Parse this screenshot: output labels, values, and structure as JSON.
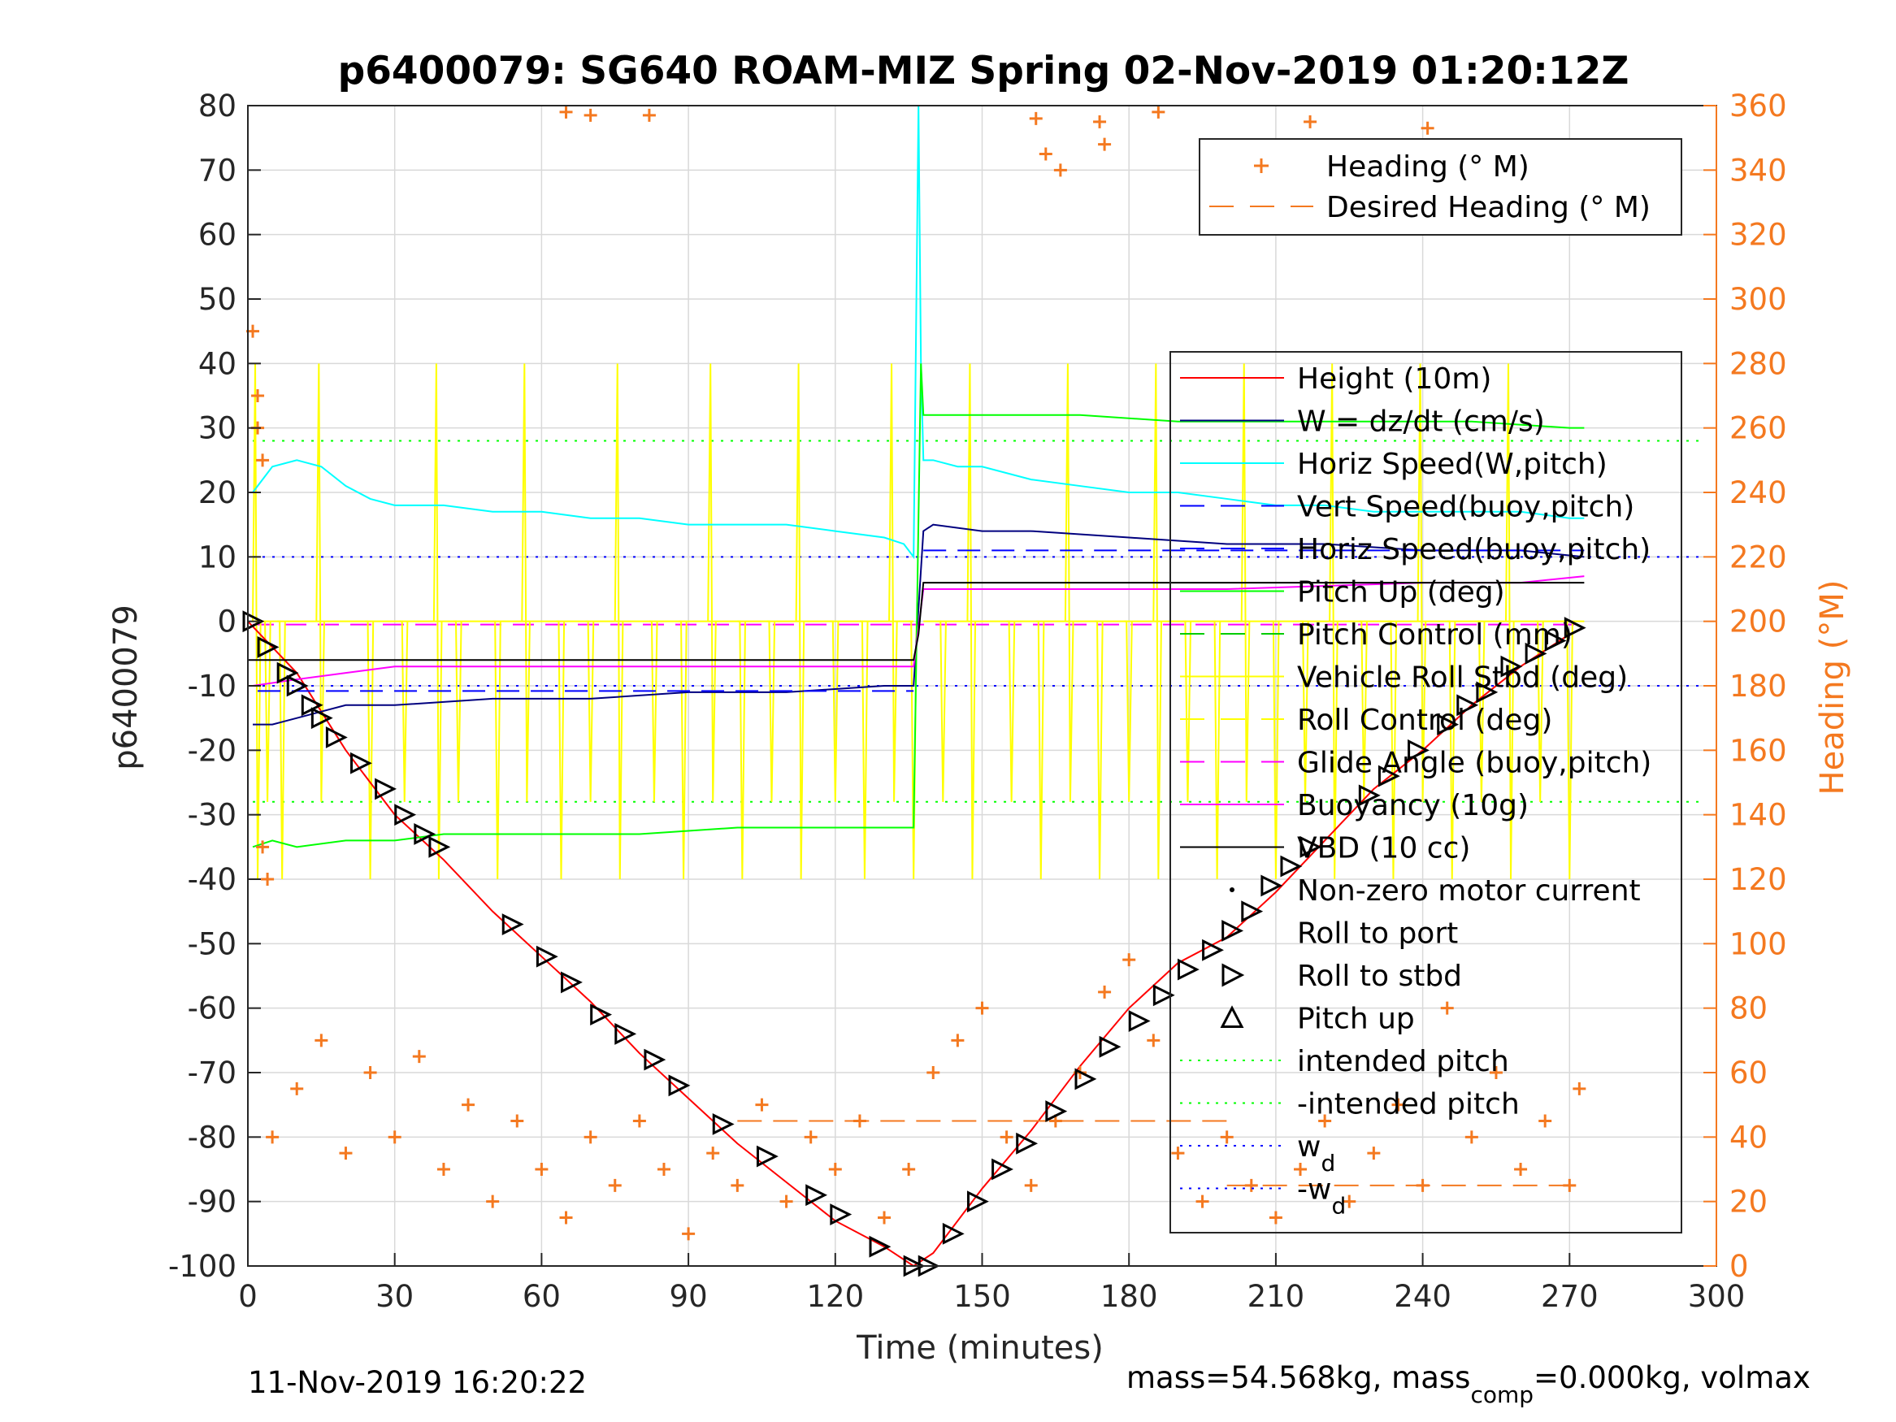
{
  "chart_data": {
    "type": "line",
    "title": "p6400079: SG640 ROAM-MIZ Spring 02-Nov-2019 01:20:12Z",
    "xlabel": "Time (minutes)",
    "ylabel": "p6400079",
    "y2label": "Heading (°M)",
    "xlim": [
      0,
      300
    ],
    "ylim": [
      -100,
      80
    ],
    "y2lim": [
      0,
      360
    ],
    "xticks": [
      "0",
      "30",
      "60",
      "90",
      "120",
      "150",
      "180",
      "210",
      "240",
      "270",
      "300"
    ],
    "yticks": [
      "80",
      "70",
      "60",
      "50",
      "40",
      "30",
      "20",
      "10",
      "0",
      "-10",
      "-20",
      "-30",
      "-40",
      "-50",
      "-60",
      "-70",
      "-80",
      "-90",
      "-100"
    ],
    "y2ticks": [
      "360",
      "340",
      "320",
      "300",
      "280",
      "260",
      "240",
      "220",
      "200",
      "180",
      "160",
      "140",
      "120",
      "100",
      "80",
      "60",
      "40",
      "20",
      "0"
    ],
    "grid": true,
    "legend_heading": {
      "placement": "top-right",
      "entries": [
        {
          "label": "Heading (° M)",
          "color": "#f47920",
          "style": "plus"
        },
        {
          "label": "Desired Heading (° M)",
          "color": "#f47920",
          "style": "dash"
        }
      ]
    },
    "legend_main": {
      "placement": "right",
      "entries": [
        {
          "label": "Height (10m)",
          "color": "#ff0000",
          "style": "line"
        },
        {
          "label": "W = dz/dt (cm/s)",
          "color": "#00007f",
          "style": "line"
        },
        {
          "label": "Horiz Speed(W,pitch)",
          "color": "#00ffff",
          "style": "line"
        },
        {
          "label": "Vert Speed(buoy,pitch)",
          "color": "#0000ff",
          "style": "dash"
        },
        {
          "label": "Horiz Speed(buoy,pitch)",
          "color": "#0000ff",
          "style": "dash"
        },
        {
          "label": "Pitch Up (deg)",
          "color": "#00ff00",
          "style": "line"
        },
        {
          "label": "Pitch Control (mm)",
          "color": "#00cc00",
          "style": "dash"
        },
        {
          "label": "Vehicle Roll Stbd (deg)",
          "color": "#ffff00",
          "style": "line"
        },
        {
          "label": "Roll Control (deg)",
          "color": "#ffff00",
          "style": "dash"
        },
        {
          "label": "Glide Angle (buoy,pitch)",
          "color": "#ff00ff",
          "style": "dash"
        },
        {
          "label": "Buoyancy (10g)",
          "color": "#ff00ff",
          "style": "line"
        },
        {
          "label": "VBD (10 cc)",
          "color": "#000000",
          "style": "line"
        },
        {
          "label": "Non-zero motor current",
          "color": "#000000",
          "style": "dot"
        },
        {
          "label": "Roll to port",
          "color": "#000000",
          "style": "tri-left"
        },
        {
          "label": "Roll to stbd",
          "color": "#000000",
          "style": "tri-right"
        },
        {
          "label": "Pitch up",
          "color": "#000000",
          "style": "tri-up"
        },
        {
          "label": "intended pitch",
          "color": "#00ff00",
          "style": "dotted"
        },
        {
          "label": "-intended pitch",
          "color": "#00ff00",
          "style": "dotted"
        },
        {
          "label": "w",
          "sub": "d",
          "color": "#0000ff",
          "style": "dotted"
        },
        {
          "label": "-w",
          "sub": "d",
          "color": "#0000ff",
          "style": "dotted"
        }
      ]
    },
    "series": [
      {
        "name": "Height (10m)",
        "color": "#ff0000",
        "x": [
          0,
          10,
          20,
          30,
          40,
          50,
          60,
          70,
          80,
          90,
          100,
          110,
          120,
          130,
          136,
          140,
          150,
          160,
          170,
          180,
          190,
          200,
          210,
          220,
          230,
          240,
          250,
          260,
          270,
          273
        ],
        "y": [
          0,
          -8,
          -20,
          -30,
          -37,
          -45,
          -52,
          -59,
          -67,
          -74,
          -81,
          -87,
          -93,
          -97,
          -100,
          -98,
          -88,
          -79,
          -69,
          -60,
          -53,
          -49,
          -42,
          -34,
          -26,
          -20,
          -13,
          -7,
          -2,
          -1
        ]
      },
      {
        "name": "Horiz Speed(W,pitch)",
        "color": "#00ffff",
        "x": [
          1,
          5,
          10,
          15,
          20,
          25,
          30,
          40,
          50,
          60,
          70,
          80,
          90,
          100,
          110,
          120,
          130,
          134,
          136,
          137,
          137.5,
          138,
          140,
          145,
          150,
          160,
          170,
          180,
          190,
          200,
          210,
          220,
          230,
          240,
          250,
          260,
          270,
          273
        ],
        "y": [
          20,
          24,
          25,
          24,
          21,
          19,
          18,
          18,
          17,
          17,
          16,
          16,
          15,
          15,
          15,
          14,
          13,
          12,
          10,
          80,
          40,
          25,
          25,
          24,
          24,
          22,
          21,
          20,
          20,
          19,
          18,
          18,
          17,
          17,
          17,
          17,
          16,
          16
        ]
      },
      {
        "name": "W = dz/dt (cm/s)",
        "color": "#00007f",
        "x": [
          1,
          5,
          10,
          20,
          30,
          50,
          70,
          90,
          110,
          130,
          136,
          138,
          140,
          150,
          160,
          180,
          200,
          220,
          240,
          260,
          273
        ],
        "y": [
          -16,
          -16,
          -15,
          -13,
          -13,
          -12,
          -12,
          -11,
          -11,
          -10,
          -10,
          14,
          15,
          14,
          14,
          13,
          12,
          12,
          11,
          11,
          10
        ]
      },
      {
        "name": "Vert Speed(buoy,pitch)",
        "color": "#0000ff",
        "x": [
          2,
          273
        ],
        "y": [
          -10.8,
          -10.8
        ],
        "note_y_end": 11
      },
      {
        "name": "Pitch Up (deg)",
        "color": "#00ff00",
        "x": [
          1,
          5,
          10,
          20,
          30,
          40,
          60,
          80,
          100,
          120,
          136,
          137.5,
          138,
          140,
          150,
          170,
          190,
          210,
          230,
          250,
          270,
          273
        ],
        "y": [
          -35,
          -34,
          -35,
          -34,
          -34,
          -33,
          -33,
          -33,
          -32,
          -32,
          -32,
          40,
          32,
          32,
          32,
          32,
          31,
          31,
          31,
          31,
          30,
          30
        ]
      },
      {
        "name": "Buoyancy (10g)",
        "color": "#ff00ff",
        "x": [
          1,
          10,
          20,
          30,
          40,
          60,
          80,
          100,
          120,
          136,
          138,
          160,
          200,
          240,
          260,
          273
        ],
        "y": [
          -10,
          -9,
          -8,
          -7,
          -7,
          -7,
          -7,
          -7,
          -7,
          -7,
          5,
          5,
          5,
          6,
          6,
          7
        ]
      },
      {
        "name": "VBD (10 cc)",
        "color": "#000000",
        "x": [
          0,
          136,
          137,
          138,
          240,
          250,
          273
        ],
        "y": [
          -6,
          -6,
          -2,
          6,
          6,
          6,
          6
        ]
      }
    ],
    "reference_lines": [
      {
        "name": "intended pitch",
        "y": 28,
        "color": "#00ff00"
      },
      {
        "name": "-intended pitch",
        "y": -28,
        "color": "#00ff00"
      },
      {
        "name": "w_d",
        "y": 10,
        "color": "#0000ff"
      },
      {
        "name": "-w_d",
        "y": -10,
        "color": "#0000ff"
      },
      {
        "name": "Glide Angle (buoy,pitch)",
        "y": -0.5,
        "color": "#ff00ff"
      }
    ],
    "heading_y2": [
      {
        "x": 5,
        "y": 40
      },
      {
        "x": 10,
        "y": 55
      },
      {
        "x": 15,
        "y": 70
      },
      {
        "x": 20,
        "y": 35
      },
      {
        "x": 25,
        "y": 60
      },
      {
        "x": 30,
        "y": 40
      },
      {
        "x": 35,
        "y": 65
      },
      {
        "x": 40,
        "y": 30
      },
      {
        "x": 45,
        "y": 50
      },
      {
        "x": 50,
        "y": 20
      },
      {
        "x": 55,
        "y": 45
      },
      {
        "x": 60,
        "y": 30
      },
      {
        "x": 65,
        "y": 15
      },
      {
        "x": 70,
        "y": 40
      },
      {
        "x": 75,
        "y": 25
      },
      {
        "x": 80,
        "y": 45
      },
      {
        "x": 85,
        "y": 30
      },
      {
        "x": 90,
        "y": 10
      },
      {
        "x": 95,
        "y": 35
      },
      {
        "x": 100,
        "y": 25
      },
      {
        "x": 105,
        "y": 50
      },
      {
        "x": 110,
        "y": 20
      },
      {
        "x": 115,
        "y": 40
      },
      {
        "x": 120,
        "y": 30
      },
      {
        "x": 125,
        "y": 45
      },
      {
        "x": 130,
        "y": 15
      },
      {
        "x": 135,
        "y": 30
      },
      {
        "x": 140,
        "y": 60
      },
      {
        "x": 145,
        "y": 70
      },
      {
        "x": 150,
        "y": 80
      },
      {
        "x": 155,
        "y": 40
      },
      {
        "x": 160,
        "y": 25
      },
      {
        "x": 165,
        "y": 45
      },
      {
        "x": 170,
        "y": 60
      },
      {
        "x": 175,
        "y": 85
      },
      {
        "x": 180,
        "y": 95
      },
      {
        "x": 185,
        "y": 70
      },
      {
        "x": 190,
        "y": 35
      },
      {
        "x": 195,
        "y": 20
      },
      {
        "x": 200,
        "y": 40
      },
      {
        "x": 205,
        "y": 25
      },
      {
        "x": 210,
        "y": 15
      },
      {
        "x": 215,
        "y": 30
      },
      {
        "x": 220,
        "y": 45
      },
      {
        "x": 225,
        "y": 20
      },
      {
        "x": 230,
        "y": 35
      },
      {
        "x": 235,
        "y": 50
      },
      {
        "x": 240,
        "y": 25
      },
      {
        "x": 245,
        "y": 80
      },
      {
        "x": 250,
        "y": 40
      },
      {
        "x": 255,
        "y": 60
      },
      {
        "x": 260,
        "y": 30
      },
      {
        "x": 265,
        "y": 45
      },
      {
        "x": 270,
        "y": 25
      },
      {
        "x": 272,
        "y": 55
      },
      {
        "x": 65,
        "y": 358
      },
      {
        "x": 70,
        "y": 357
      },
      {
        "x": 82,
        "y": 357
      },
      {
        "x": 161,
        "y": 356
      },
      {
        "x": 163,
        "y": 345
      },
      {
        "x": 166,
        "y": 340
      },
      {
        "x": 174,
        "y": 355
      },
      {
        "x": 175,
        "y": 348
      },
      {
        "x": 186,
        "y": 358
      },
      {
        "x": 217,
        "y": 355
      },
      {
        "x": 241,
        "y": 353
      },
      {
        "x": 242,
        "y": 342
      },
      {
        "x": 1,
        "y": 290
      },
      {
        "x": 2,
        "y": 270
      },
      {
        "x": 2,
        "y": 260
      },
      {
        "x": 3,
        "y": 250
      },
      {
        "x": 3,
        "y": 130
      },
      {
        "x": 4,
        "y": 120
      }
    ],
    "desired_heading_y2": {
      "segments": [
        {
          "x": [
            100,
            200
          ],
          "y": [
            45,
            45
          ]
        },
        {
          "x": [
            200,
            273
          ],
          "y": [
            25,
            25
          ]
        }
      ]
    },
    "markers_pitch": [
      {
        "x": 1,
        "y": 0
      },
      {
        "x": 4,
        "y": -4
      },
      {
        "x": 8,
        "y": -8
      },
      {
        "x": 10,
        "y": -10
      },
      {
        "x": 13,
        "y": -13
      },
      {
        "x": 15,
        "y": -15
      },
      {
        "x": 18,
        "y": -18
      },
      {
        "x": 23,
        "y": -22
      },
      {
        "x": 28,
        "y": -26
      },
      {
        "x": 32,
        "y": -30
      },
      {
        "x": 36,
        "y": -33
      },
      {
        "x": 39,
        "y": -35
      },
      {
        "x": 54,
        "y": -47
      },
      {
        "x": 61,
        "y": -52
      },
      {
        "x": 66,
        "y": -56
      },
      {
        "x": 72,
        "y": -61
      },
      {
        "x": 77,
        "y": -64
      },
      {
        "x": 83,
        "y": -68
      },
      {
        "x": 88,
        "y": -72
      },
      {
        "x": 97,
        "y": -78
      },
      {
        "x": 106,
        "y": -83
      },
      {
        "x": 116,
        "y": -89
      },
      {
        "x": 121,
        "y": -92
      },
      {
        "x": 129,
        "y": -97
      },
      {
        "x": 136,
        "y": -100
      },
      {
        "x": 139,
        "y": -100
      },
      {
        "x": 144,
        "y": -95
      },
      {
        "x": 149,
        "y": -90
      },
      {
        "x": 154,
        "y": -85
      },
      {
        "x": 159,
        "y": -81
      },
      {
        "x": 165,
        "y": -76
      },
      {
        "x": 171,
        "y": -71
      },
      {
        "x": 176,
        "y": -66
      },
      {
        "x": 182,
        "y": -62
      },
      {
        "x": 187,
        "y": -58
      },
      {
        "x": 192,
        "y": -54
      },
      {
        "x": 197,
        "y": -51
      },
      {
        "x": 201,
        "y": -48
      },
      {
        "x": 205,
        "y": -45
      },
      {
        "x": 209,
        "y": -41
      },
      {
        "x": 213,
        "y": -38
      },
      {
        "x": 217,
        "y": -35
      },
      {
        "x": 229,
        "y": -27
      },
      {
        "x": 233,
        "y": -24
      },
      {
        "x": 239,
        "y": -20
      },
      {
        "x": 245,
        "y": -16
      },
      {
        "x": 249,
        "y": -13
      },
      {
        "x": 253,
        "y": -11
      },
      {
        "x": 258,
        "y": -7
      },
      {
        "x": 263,
        "y": -5
      },
      {
        "x": 267,
        "y": -3
      },
      {
        "x": 271,
        "y": -1
      }
    ],
    "roll_spikes_x": [
      2,
      4,
      7,
      15,
      25,
      32,
      39,
      43,
      51,
      57,
      64,
      70,
      76,
      83,
      89,
      95,
      101,
      107,
      113,
      120,
      126,
      132,
      136,
      142,
      148,
      156,
      162,
      168,
      174,
      180,
      186,
      192,
      198,
      204,
      210,
      216,
      222,
      228,
      234,
      240,
      246,
      252,
      258,
      264,
      270
    ]
  },
  "footer": {
    "timestamp": "11-Nov-2019 16:20:22",
    "mass_text_a": "mass=54.568kg, mass",
    "mass_sub": "comp",
    "mass_text_b": "=0.000kg, volmax"
  },
  "colors": {
    "heading": "#f47920",
    "axis": "#262626",
    "grid": "#d9d9d9"
  }
}
